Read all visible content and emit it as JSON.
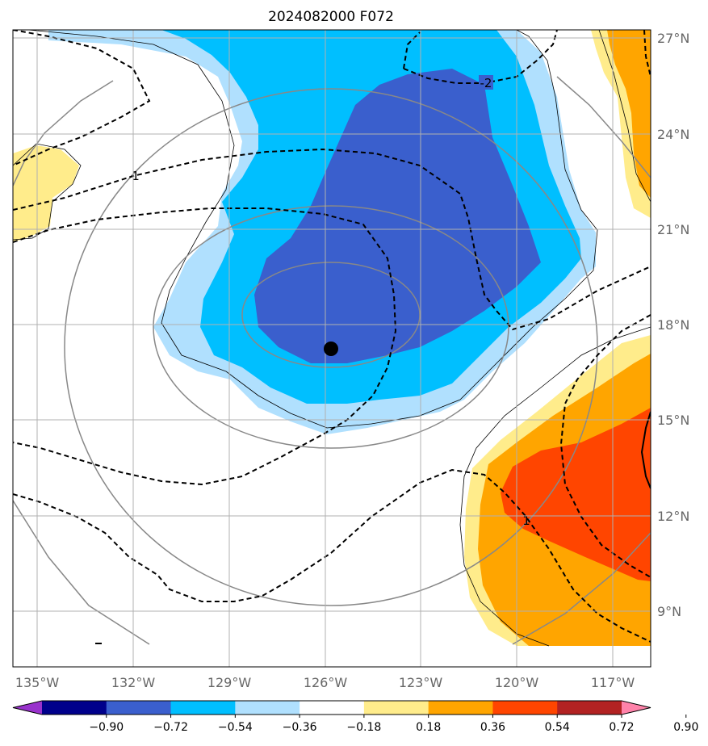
{
  "title": "2024082000 F072",
  "chart_data": {
    "type": "heatmap",
    "title": "2024082000 F072",
    "x_ticks": [
      "135°W",
      "132°W",
      "129°W",
      "126°W",
      "123°W",
      "120°W",
      "117°W"
    ],
    "y_ticks": [
      "27°N",
      "24°N",
      "21°N",
      "18°N",
      "15°N",
      "12°N",
      "9°N"
    ],
    "xlim": [
      -135.8,
      -115.8
    ],
    "ylim": [
      7.7,
      27.7
    ],
    "grid": true,
    "colorbar": {
      "ticks": [
        "−0.90",
        "−0.72",
        "−0.54",
        "−0.36",
        "−0.18",
        "0.18",
        "0.36",
        "0.54",
        "0.72",
        "0.90"
      ],
      "colors": [
        "#9932cc",
        "#00008b",
        "#3a5fcd",
        "#00bfff",
        "#b0e0fe",
        "#ffffff",
        "#ffec8b",
        "#ffa500",
        "#ff4500",
        "#b22222",
        "#ff83aa"
      ],
      "orientation": "horizontal",
      "extend": "both"
    },
    "contour_labels": [
      "-2",
      "1",
      "1"
    ],
    "storm_center": {
      "lon": -125.8,
      "lat": 17.2
    }
  }
}
